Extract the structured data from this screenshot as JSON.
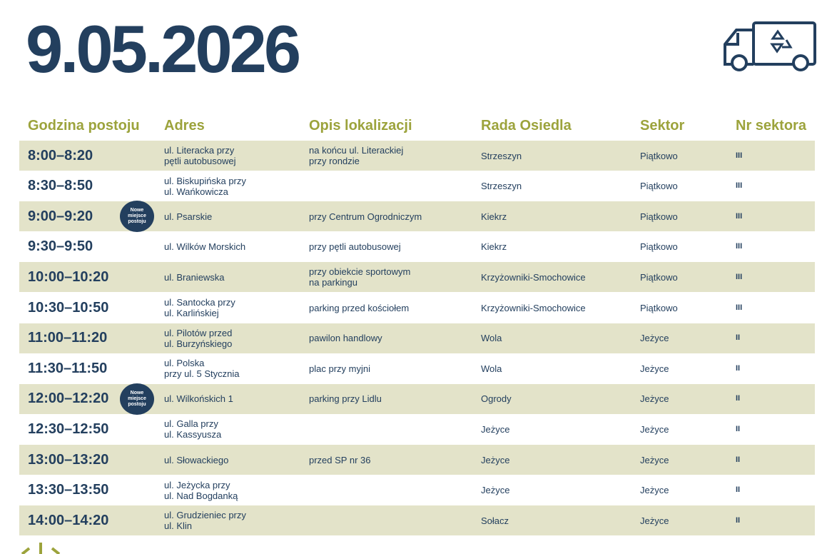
{
  "header": {
    "title": "9.05.2026"
  },
  "table": {
    "columns": [
      "Godzina postoju",
      "Adres",
      "Opis lokalizacji",
      "Rada Osiedla",
      "Sektor",
      "Nr sektora"
    ],
    "rows": [
      {
        "time": "8:00–8:20",
        "address": "ul. Literacka przy\npętli autobusowej",
        "location": "na końcu ul. Literackiej\nprzy rondzie",
        "council": "Strzeszyn",
        "sector": "Piątkowo",
        "sector_no": "III"
      },
      {
        "time": "8:30–8:50",
        "address": "ul. Biskupińska przy\nul. Wańkowicza",
        "location": "",
        "council": "Strzeszyn",
        "sector": "Piątkowo",
        "sector_no": "III"
      },
      {
        "time": "9:00–9:20",
        "badge": "Nowe\nmiejsce\npostoju",
        "address": "ul. Psarskie",
        "location": "przy Centrum Ogrodniczym",
        "council": "Kiekrz",
        "sector": "Piątkowo",
        "sector_no": "III"
      },
      {
        "time": "9:30–9:50",
        "address": "ul. Wilków Morskich",
        "location": "przy pętli autobusowej",
        "council": "Kiekrz",
        "sector": "Piątkowo",
        "sector_no": "III"
      },
      {
        "time": "10:00–10:20",
        "address": "ul. Braniewska",
        "location": "przy obiekcie sportowym\nna parkingu",
        "council": "Krzyżowniki-Smochowice",
        "sector": "Piątkowo",
        "sector_no": "III"
      },
      {
        "time": "10:30–10:50",
        "address": "ul. Santocka przy\nul. Karlińskiej",
        "location": "parking przed kościołem",
        "council": "Krzyżowniki-Smochowice",
        "sector": "Piątkowo",
        "sector_no": "III"
      },
      {
        "time": "11:00–11:20",
        "address": "ul. Pilotów przed\nul. Burzyńskiego",
        "location": "pawilon handlowy",
        "council": "Wola",
        "sector": "Jeżyce",
        "sector_no": "II"
      },
      {
        "time": "11:30–11:50",
        "address": "ul. Polska\nprzy ul. 5 Stycznia",
        "location": "plac przy myjni",
        "council": "Wola",
        "sector": "Jeżyce",
        "sector_no": "II"
      },
      {
        "time": "12:00–12:20",
        "badge": "Nowe\nmiejsce\npostoju",
        "address": "ul. Wilkońskich 1",
        "location": "parking przy Lidlu",
        "council": "Ogrody",
        "sector": "Jeżyce",
        "sector_no": "II"
      },
      {
        "time": "12:30–12:50",
        "address": "ul. Galla przy\nul. Kassyusza",
        "location": "",
        "council": "Jeżyce",
        "sector": "Jeżyce",
        "sector_no": "II"
      },
      {
        "time": "13:00–13:20",
        "address": "ul. Słowackiego",
        "location": "przed SP nr 36",
        "council": "Jeżyce",
        "sector": "Jeżyce",
        "sector_no": "II"
      },
      {
        "time": "13:30–13:50",
        "address": "ul. Jeżycka przy\nul. Nad Bogdanką",
        "location": "",
        "council": "Jeżyce",
        "sector": "Jeżyce",
        "sector_no": "II"
      },
      {
        "time": "14:00–14:20",
        "address": "ul. Grudzieniec przy\nul. Klin",
        "location": "",
        "council": "Sołacz",
        "sector": "Jeżyce",
        "sector_no": "II"
      }
    ]
  }
}
